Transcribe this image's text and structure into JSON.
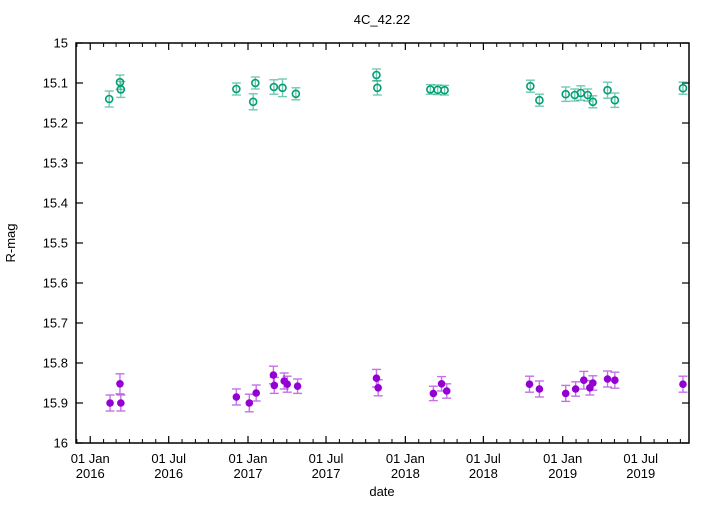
{
  "chart_data": {
    "type": "scatter",
    "title": "4C_42.22",
    "xlabel": "date",
    "ylabel": "R-mag",
    "ylim": [
      16.0,
      15.0
    ],
    "y_axis_reversed": true,
    "xlim": [
      "2015-11-29",
      "2019-10-21"
    ],
    "grid": false,
    "legend": "none",
    "border_color": "#000000",
    "y_ticks": {
      "step": 0.1,
      "values": [
        15.0,
        15.1,
        15.2,
        15.3,
        15.4,
        15.5,
        15.6,
        15.7,
        15.8,
        15.9,
        16.0
      ],
      "labels": [
        "15",
        "15.1",
        "15.2",
        "15.3",
        "15.4",
        "15.5",
        "15.6",
        "15.7",
        "15.8",
        "15.9",
        "16"
      ]
    },
    "x_major_ticks": [
      {
        "date": "2016-01-01",
        "label_line1": "01 Jan",
        "label_line2": "2016"
      },
      {
        "date": "2016-07-01",
        "label_line1": "01 Jul",
        "label_line2": "2016"
      },
      {
        "date": "2017-01-01",
        "label_line1": "01 Jan",
        "label_line2": "2017"
      },
      {
        "date": "2017-07-01",
        "label_line1": "01 Jul",
        "label_line2": "2017"
      },
      {
        "date": "2018-01-01",
        "label_line1": "01 Jan",
        "label_line2": "2018"
      },
      {
        "date": "2018-07-01",
        "label_line1": "01 Jul",
        "label_line2": "2018"
      },
      {
        "date": "2019-01-01",
        "label_line1": "01 Jan",
        "label_line2": "2019"
      },
      {
        "date": "2019-07-01",
        "label_line1": "01 Jul",
        "label_line2": "2019"
      }
    ],
    "x_minor_ticks": "monthly",
    "series": [
      {
        "name": "open-circles-series",
        "marker": "open-circle",
        "color": "#009e73",
        "points": [
          {
            "date": "2016-02-14",
            "mag": 15.14,
            "err": 0.02
          },
          {
            "date": "2016-03-10",
            "mag": 15.098,
            "err": 0.018
          },
          {
            "date": "2016-03-12",
            "mag": 15.116,
            "err": 0.02
          },
          {
            "date": "2016-12-05",
            "mag": 15.115,
            "err": 0.015
          },
          {
            "date": "2017-01-13",
            "mag": 15.147,
            "err": 0.02
          },
          {
            "date": "2017-01-18",
            "mag": 15.1,
            "err": 0.015
          },
          {
            "date": "2017-03-02",
            "mag": 15.11,
            "err": 0.018
          },
          {
            "date": "2017-03-22",
            "mag": 15.112,
            "err": 0.022
          },
          {
            "date": "2017-04-22",
            "mag": 15.127,
            "err": 0.015
          },
          {
            "date": "2017-10-26",
            "mag": 15.08,
            "err": 0.015
          },
          {
            "date": "2017-10-28",
            "mag": 15.112,
            "err": 0.018
          },
          {
            "date": "2018-02-28",
            "mag": 15.116,
            "err": 0.012
          },
          {
            "date": "2018-03-17",
            "mag": 15.117,
            "err": 0.012
          },
          {
            "date": "2018-04-02",
            "mag": 15.118,
            "err": 0.012
          },
          {
            "date": "2018-10-18",
            "mag": 15.108,
            "err": 0.015
          },
          {
            "date": "2018-11-08",
            "mag": 15.143,
            "err": 0.015
          },
          {
            "date": "2019-01-08",
            "mag": 15.128,
            "err": 0.018
          },
          {
            "date": "2019-01-29",
            "mag": 15.13,
            "err": 0.015
          },
          {
            "date": "2019-02-12",
            "mag": 15.125,
            "err": 0.018
          },
          {
            "date": "2019-02-28",
            "mag": 15.13,
            "err": 0.015
          },
          {
            "date": "2019-03-12",
            "mag": 15.147,
            "err": 0.015
          },
          {
            "date": "2019-04-15",
            "mag": 15.118,
            "err": 0.02
          },
          {
            "date": "2019-05-02",
            "mag": 15.143,
            "err": 0.018
          },
          {
            "date": "2019-10-07",
            "mag": 15.113,
            "err": 0.015
          }
        ]
      },
      {
        "name": "filled-circles-series",
        "marker": "filled-circle",
        "color": "#9400d3",
        "points": [
          {
            "date": "2016-02-16",
            "mag": 15.9,
            "err": 0.02
          },
          {
            "date": "2016-03-10",
            "mag": 15.852,
            "err": 0.025
          },
          {
            "date": "2016-03-12",
            "mag": 15.9,
            "err": 0.02
          },
          {
            "date": "2016-12-05",
            "mag": 15.885,
            "err": 0.02
          },
          {
            "date": "2017-01-04",
            "mag": 15.9,
            "err": 0.022
          },
          {
            "date": "2017-01-20",
            "mag": 15.875,
            "err": 0.02
          },
          {
            "date": "2017-03-01",
            "mag": 15.83,
            "err": 0.022
          },
          {
            "date": "2017-03-03",
            "mag": 15.856,
            "err": 0.02
          },
          {
            "date": "2017-03-26",
            "mag": 15.845,
            "err": 0.02
          },
          {
            "date": "2017-04-02",
            "mag": 15.853,
            "err": 0.02
          },
          {
            "date": "2017-04-26",
            "mag": 15.858,
            "err": 0.018
          },
          {
            "date": "2017-10-26",
            "mag": 15.838,
            "err": 0.022
          },
          {
            "date": "2017-10-30",
            "mag": 15.862,
            "err": 0.02
          },
          {
            "date": "2018-03-07",
            "mag": 15.876,
            "err": 0.018
          },
          {
            "date": "2018-03-26",
            "mag": 15.852,
            "err": 0.018
          },
          {
            "date": "2018-04-07",
            "mag": 15.87,
            "err": 0.018
          },
          {
            "date": "2018-10-16",
            "mag": 15.853,
            "err": 0.02
          },
          {
            "date": "2018-11-08",
            "mag": 15.865,
            "err": 0.02
          },
          {
            "date": "2019-01-08",
            "mag": 15.876,
            "err": 0.02
          },
          {
            "date": "2019-01-31",
            "mag": 15.865,
            "err": 0.018
          },
          {
            "date": "2019-02-19",
            "mag": 15.843,
            "err": 0.022
          },
          {
            "date": "2019-03-05",
            "mag": 15.862,
            "err": 0.018
          },
          {
            "date": "2019-03-12",
            "mag": 15.85,
            "err": 0.018
          },
          {
            "date": "2019-04-15",
            "mag": 15.84,
            "err": 0.02
          },
          {
            "date": "2019-05-02",
            "mag": 15.843,
            "err": 0.02
          },
          {
            "date": "2019-10-07",
            "mag": 15.853,
            "err": 0.02
          }
        ]
      }
    ]
  }
}
